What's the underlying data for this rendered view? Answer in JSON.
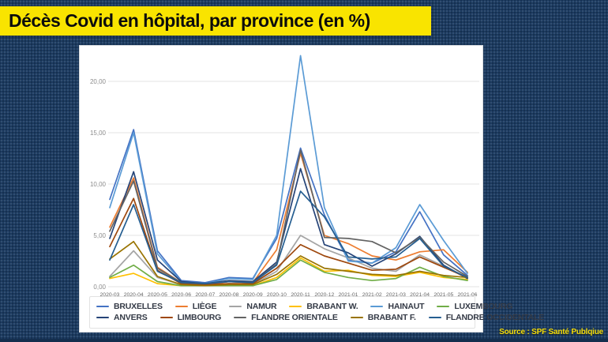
{
  "title": "Décès Covid en hôpital, par province (en %)",
  "source": "Source : SPF Santé Publqiue",
  "colors": {
    "background": "#1c3b61",
    "title_bar": "#f9e400",
    "title_text": "#0c0c0c",
    "card": "#ffffff",
    "gridline": "#e3e3e3",
    "axis_label": "#8c8c8c",
    "source_text": "#f7df0a"
  },
  "chart_data": {
    "type": "line",
    "title": "Décès Covid en hôpital, par province (en %)",
    "xlabel": "",
    "ylabel": "",
    "ylim": [
      0,
      23
    ],
    "grid": true,
    "legend_position": "bottom",
    "categories": [
      "2020-03",
      "2020-04",
      "2020-05",
      "2020-06",
      "2020-07",
      "2020-08",
      "2020-09",
      "2020-10",
      "2020-11",
      "2020-12",
      "2021-01",
      "2021-02",
      "2021-03",
      "2021-04",
      "2021-05",
      "2021-06"
    ],
    "y_ticks": {
      "values": [
        0,
        5,
        10,
        15,
        20
      ],
      "labels": [
        "0,00",
        "5,00",
        "10,00",
        "15,00",
        "20,00"
      ]
    },
    "legend_rows": [
      [
        0,
        1,
        2,
        3,
        4,
        5
      ],
      [
        6,
        7,
        8,
        9,
        10
      ]
    ],
    "series": [
      {
        "name": "BRUXELLES",
        "color": "#4472C4",
        "values": [
          8.5,
          15.3,
          3.5,
          0.6,
          0.4,
          0.9,
          0.8,
          4.7,
          13.5,
          7.0,
          2.6,
          2.3,
          3.4,
          7.3,
          3.1,
          1.1
        ]
      },
      {
        "name": "LIÈGE",
        "color": "#ED7D31",
        "values": [
          5.8,
          10.6,
          1.9,
          0.4,
          0.2,
          0.5,
          0.4,
          3.6,
          13.0,
          5.0,
          4.2,
          3.0,
          2.6,
          3.4,
          3.6,
          1.4
        ]
      },
      {
        "name": "NAMUR",
        "color": "#A5A5A5",
        "values": [
          1.0,
          3.5,
          0.9,
          0.2,
          0.1,
          0.3,
          0.2,
          1.5,
          5.0,
          3.7,
          2.8,
          1.8,
          1.5,
          3.1,
          2.0,
          0.8
        ]
      },
      {
        "name": "BRABANT W.",
        "color": "#FFC000",
        "values": [
          0.8,
          1.3,
          0.3,
          0.1,
          0.1,
          0.2,
          0.1,
          0.9,
          2.8,
          1.5,
          1.6,
          1.1,
          1.0,
          1.4,
          0.9,
          0.7
        ]
      },
      {
        "name": "HAINAUT",
        "color": "#5B9BD5",
        "values": [
          7.7,
          15.0,
          3.2,
          0.5,
          0.3,
          0.8,
          0.7,
          5.0,
          22.5,
          7.7,
          2.5,
          2.3,
          3.8,
          8.0,
          4.5,
          1.3
        ]
      },
      {
        "name": "LUXEMBOURG",
        "color": "#70AD47",
        "values": [
          0.9,
          2.1,
          0.5,
          0.1,
          0.1,
          0.1,
          0.1,
          0.7,
          2.6,
          1.4,
          0.9,
          0.6,
          0.8,
          1.9,
          1.0,
          0.6
        ]
      },
      {
        "name": "ANVERS",
        "color": "#264478",
        "values": [
          4.7,
          11.2,
          2.6,
          0.5,
          0.3,
          0.6,
          0.5,
          2.4,
          11.5,
          4.1,
          3.3,
          2.0,
          3.2,
          4.9,
          2.1,
          0.8
        ]
      },
      {
        "name": "LIMBOURG",
        "color": "#9E480E",
        "values": [
          3.9,
          8.6,
          1.6,
          0.3,
          0.2,
          0.3,
          0.3,
          1.8,
          4.1,
          3.0,
          2.3,
          1.6,
          1.7,
          2.9,
          1.9,
          0.9
        ]
      },
      {
        "name": "FLANDRE ORIENTALE",
        "color": "#636363",
        "values": [
          5.4,
          10.3,
          1.8,
          0.4,
          0.3,
          0.5,
          0.4,
          2.2,
          13.3,
          4.8,
          4.7,
          4.4,
          3.3,
          4.8,
          2.4,
          1.0
        ]
      },
      {
        "name": "BRABANT F.",
        "color": "#997300",
        "values": [
          2.7,
          4.4,
          1.0,
          0.2,
          0.1,
          0.2,
          0.2,
          1.2,
          3.0,
          1.8,
          1.5,
          1.2,
          1.1,
          1.5,
          1.1,
          0.9
        ]
      },
      {
        "name": "FLANDRE OCCIDENTALE",
        "color": "#255E91",
        "values": [
          2.6,
          8.0,
          1.5,
          0.4,
          0.3,
          0.5,
          0.4,
          2.1,
          9.3,
          6.8,
          2.9,
          2.7,
          2.9,
          4.7,
          2.0,
          0.9
        ]
      }
    ]
  }
}
